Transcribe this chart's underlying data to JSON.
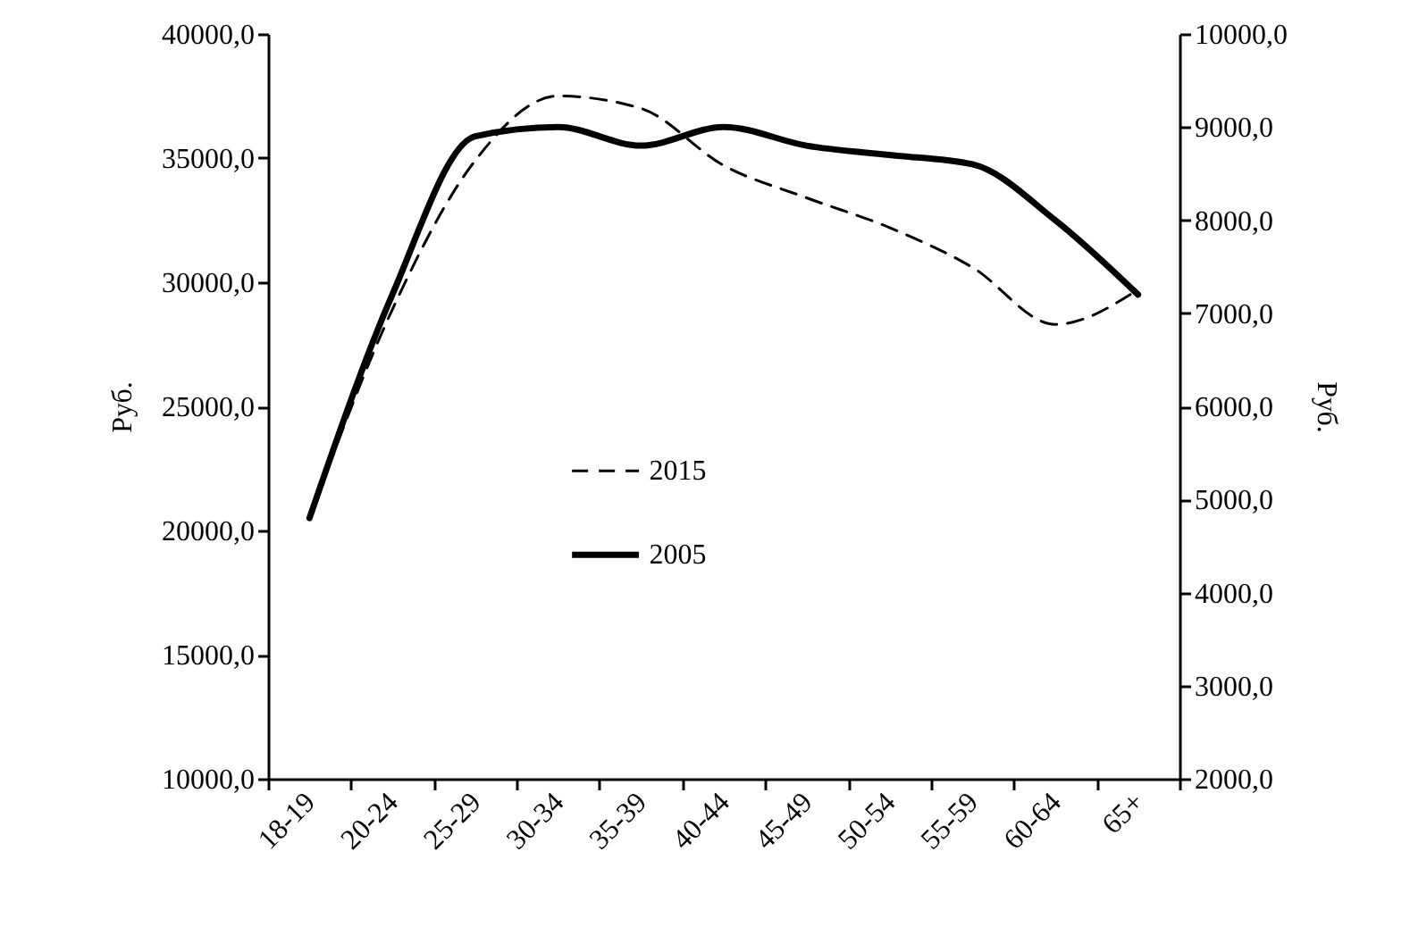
{
  "chart_data": {
    "type": "line",
    "categories": [
      "18-19",
      "20-24",
      "25-29",
      "30-34",
      "35-39",
      "40-44",
      "45-49",
      "50-54",
      "55-59",
      "60-64",
      "65+"
    ],
    "series": [
      {
        "name": "2015",
        "color": "#000000",
        "line_style": "dashed",
        "values": [
          20500,
          28900,
          34900,
          37500,
          37000,
          34700,
          33400,
          32200,
          30600,
          28300,
          29700
        ]
      },
      {
        "name": "2005",
        "color": "#000000",
        "line_style": "solid",
        "axis": "y2",
        "values": [
          4800,
          7200,
          8900,
          9000,
          8800,
          9000,
          8800,
          8700,
          8600,
          8000,
          7200
        ]
      }
    ],
    "ylabel": "Руб.",
    "y2label": "Руб.",
    "ylim": [
      10000,
      40000
    ],
    "yticks": [
      {
        "value": 10000,
        "label": "10000,0"
      },
      {
        "value": 15000,
        "label": "15000,0"
      },
      {
        "value": 20000,
        "label": "20000,0"
      },
      {
        "value": 25000,
        "label": "25000,0"
      },
      {
        "value": 30000,
        "label": "30000,0"
      },
      {
        "value": 35000,
        "label": "35000,0"
      },
      {
        "value": 40000,
        "label": "40000,0"
      }
    ],
    "y2lim": [
      2000,
      10000
    ],
    "y2ticks": [
      {
        "value": 2000,
        "label": "2000,0"
      },
      {
        "value": 3000,
        "label": "3000,0"
      },
      {
        "value": 4000,
        "label": "4000,0"
      },
      {
        "value": 5000,
        "label": "5000,0"
      },
      {
        "value": 6000,
        "label": "6000,0"
      },
      {
        "value": 7000,
        "label": "7000,0"
      },
      {
        "value": 8000,
        "label": "8000,0"
      },
      {
        "value": 9000,
        "label": "9000,0"
      },
      {
        "value": 10000,
        "label": "10000,0"
      }
    ],
    "grid": false,
    "legend": "center"
  }
}
